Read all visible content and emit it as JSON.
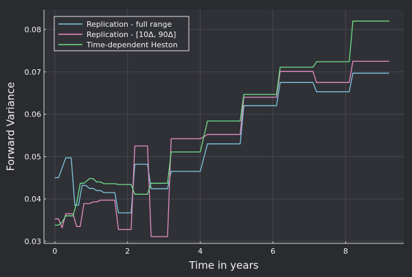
{
  "colors": {
    "background": "#2a2b2f",
    "plot_background": "#303136",
    "grid": "#46474c",
    "axis": "#d8d8d8",
    "text": "#f2f2f2",
    "legend_border": "#e8e8e8"
  },
  "chart_data": {
    "type": "line",
    "title": "",
    "xlabel": "Time in years",
    "ylabel": "Forward Variance",
    "xlim": [
      -0.3,
      9.6
    ],
    "ylim": [
      0.0295,
      0.0847
    ],
    "xticks": [
      0,
      2,
      4,
      6,
      8
    ],
    "xtick_labels": [
      "0",
      "2",
      "4",
      "6",
      "8"
    ],
    "yticks": [
      0.03,
      0.04,
      0.05,
      0.06,
      0.07,
      0.08
    ],
    "ytick_labels": [
      "0.03",
      "0.04",
      "0.05",
      "0.06",
      "0.07",
      "0.08"
    ],
    "grid": true,
    "legend_position": "top-left",
    "series": [
      {
        "name": "Replication - full range",
        "color": "#7ec8e3",
        "x": [
          0,
          0.1,
          0.3,
          0.45,
          0.55,
          0.65,
          0.75,
          0.85,
          0.95,
          1.05,
          1.15,
          1.25,
          1.35,
          1.65,
          1.75,
          2.0,
          2.1,
          2.2,
          2.55,
          2.65,
          3.0,
          3.1,
          3.2,
          4.0,
          4.2,
          5.1,
          5.2,
          6.1,
          6.2,
          7.1,
          7.2,
          8.1,
          8.2,
          9.2
        ],
        "y": [
          0.045,
          0.045,
          0.0497,
          0.0497,
          0.0385,
          0.0385,
          0.0432,
          0.0432,
          0.0425,
          0.0425,
          0.042,
          0.042,
          0.0415,
          0.0415,
          0.0367,
          0.0367,
          0.0367,
          0.0482,
          0.0482,
          0.0424,
          0.0424,
          0.0424,
          0.0465,
          0.0465,
          0.053,
          0.053,
          0.062,
          0.062,
          0.0675,
          0.0675,
          0.0653,
          0.0653,
          0.0697,
          0.0697
        ]
      },
      {
        "name": "Replication - [10Δ, 90Δ]",
        "color": "#e88fc7",
        "x": [
          0,
          0.1,
          0.2,
          0.3,
          0.5,
          0.6,
          0.7,
          0.8,
          0.95,
          1.05,
          1.15,
          1.25,
          1.35,
          1.65,
          1.75,
          2.0,
          2.1,
          2.2,
          2.55,
          2.65,
          3.0,
          3.1,
          3.2,
          4.0,
          4.2,
          5.1,
          5.2,
          6.1,
          6.2,
          7.1,
          7.2,
          8.1,
          8.2,
          9.2
        ],
        "y": [
          0.0353,
          0.0353,
          0.0332,
          0.0365,
          0.0365,
          0.0335,
          0.0335,
          0.0389,
          0.0389,
          0.0393,
          0.0393,
          0.0397,
          0.0397,
          0.0397,
          0.0328,
          0.0328,
          0.0328,
          0.0525,
          0.0525,
          0.0311,
          0.0311,
          0.0311,
          0.0542,
          0.0542,
          0.0552,
          0.0552,
          0.064,
          0.064,
          0.0701,
          0.0701,
          0.0675,
          0.0675,
          0.0725,
          0.0725
        ]
      },
      {
        "name": "Time-dependent Heston",
        "color": "#6fe08a",
        "x": [
          0,
          0.1,
          0.2,
          0.3,
          0.5,
          0.6,
          0.7,
          0.8,
          0.95,
          1.05,
          1.15,
          1.25,
          1.35,
          1.65,
          1.75,
          2.0,
          2.1,
          2.2,
          2.55,
          2.65,
          3.0,
          3.1,
          3.2,
          4.0,
          4.2,
          5.1,
          5.2,
          6.1,
          6.2,
          7.1,
          7.2,
          8.1,
          8.2,
          9.2
        ],
        "y": [
          0.0338,
          0.0338,
          0.0345,
          0.036,
          0.036,
          0.039,
          0.0437,
          0.0437,
          0.0448,
          0.0448,
          0.044,
          0.044,
          0.0436,
          0.0436,
          0.0434,
          0.0434,
          0.0434,
          0.0411,
          0.0411,
          0.0437,
          0.0437,
          0.0437,
          0.0511,
          0.0511,
          0.0584,
          0.0584,
          0.0647,
          0.0647,
          0.0711,
          0.0711,
          0.0724,
          0.0724,
          0.082,
          0.082
        ]
      }
    ]
  }
}
